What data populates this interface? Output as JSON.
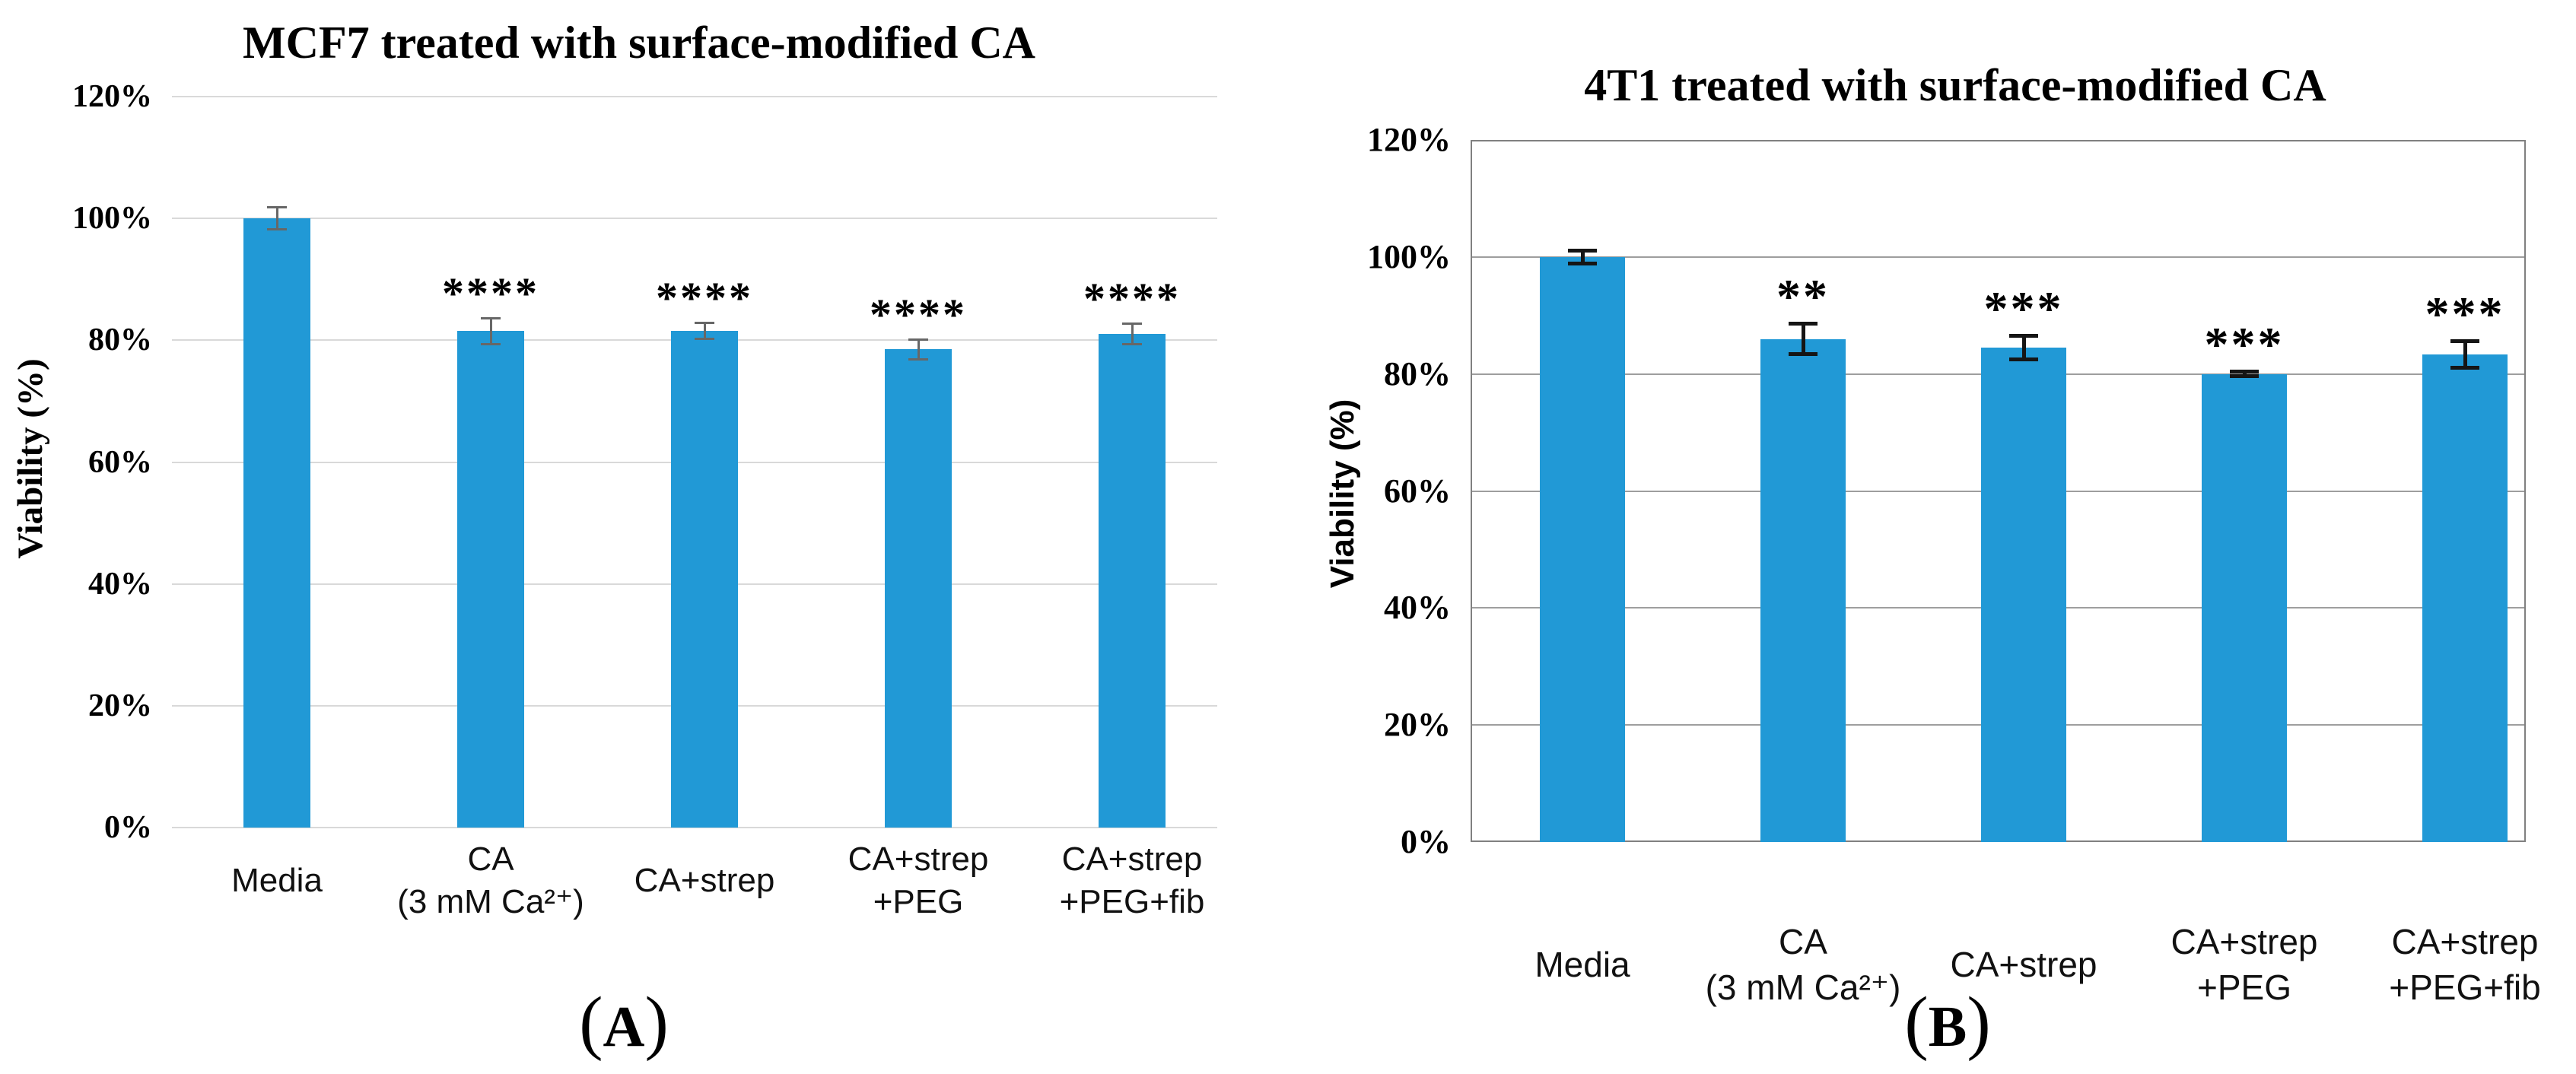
{
  "figure": {
    "background": "#ffffff",
    "bar_color": "#2199D6"
  },
  "chart_data": [
    {
      "type": "bar",
      "panel": "A",
      "title": "MCF7 treated with surface-modified CA",
      "xlabel": "",
      "ylabel": "Viability (%)",
      "unit": "%",
      "categories": [
        "Media",
        "CA\n(3 mM Ca²⁺)",
        "CA+strep",
        "CA+strep\n+PEG",
        "CA+strep\n+PEG+fib"
      ],
      "values": [
        100,
        81.5,
        81.5,
        78.5,
        81
      ],
      "error_bars": [
        1.8,
        2.1,
        1.3,
        1.6,
        1.7
      ],
      "significance": [
        "",
        "****",
        "****",
        "****",
        "****"
      ],
      "ylim": [
        0,
        120
      ],
      "ytick_step": 20,
      "yticks": [
        "0%",
        "20%",
        "40%",
        "60%",
        "80%",
        "100%",
        "120%"
      ],
      "grid": true,
      "legend": "none",
      "plot_border": false,
      "bar_color": "#2199D6",
      "grid_color": "#D9D9D9",
      "error_color": "#676767",
      "caption_open": "(",
      "caption_label": "A",
      "caption_close": ")"
    },
    {
      "type": "bar",
      "panel": "B",
      "title": "4T1 treated with surface-modified CA",
      "xlabel": "",
      "ylabel": "Viability (%)",
      "unit": "%",
      "categories": [
        "Media",
        "CA\n(3 mM Ca²⁺)",
        "CA+strep",
        "CA+strep\n+PEG",
        "CA+strep\n+PEG+fib"
      ],
      "values": [
        100,
        86,
        84.5,
        80,
        83.3
      ],
      "error_bars": [
        1.1,
        2.6,
        2.0,
        0.4,
        2.3
      ],
      "significance": [
        "",
        "**",
        "***",
        "***",
        "***"
      ],
      "ylim": [
        0,
        120
      ],
      "ytick_step": 20,
      "yticks": [
        "0%",
        "20%",
        "40%",
        "60%",
        "80%",
        "100%",
        "120%"
      ],
      "grid": true,
      "legend": "none",
      "plot_border": true,
      "bar_color": "#2199D6",
      "grid_color": "#9E9E9E",
      "border_color": "#808080",
      "error_color": "#151515",
      "caption_open": "(",
      "caption_label": "B",
      "caption_close": ")"
    }
  ]
}
